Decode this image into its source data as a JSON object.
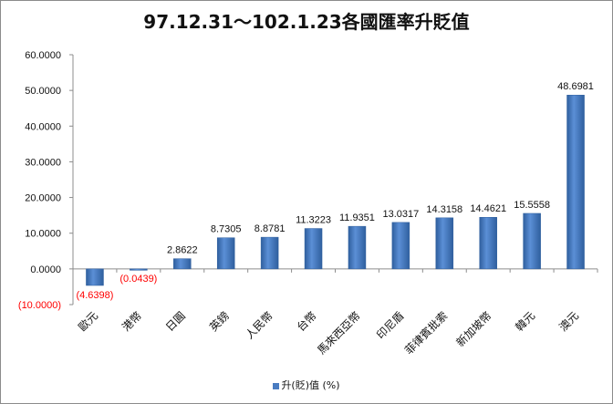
{
  "chart_data": {
    "type": "bar",
    "title": "97.12.31～102.1.23各國匯率升貶值",
    "categories": [
      "歐元",
      "港幣",
      "日圓",
      "英鎊",
      "人民幣",
      "台幣",
      "馬來西亞幣",
      "印尼盾",
      "菲律賓批索",
      "新加坡幣",
      "韓元",
      "澳元"
    ],
    "series": [
      {
        "name": "升(貶)值 (%)",
        "values": [
          -4.6398,
          -0.0439,
          2.8622,
          8.7305,
          8.8781,
          11.3223,
          11.9351,
          13.0317,
          14.3158,
          14.4621,
          15.5558,
          48.6981
        ]
      }
    ],
    "data_labels": [
      "(4.6398)",
      "(0.0439)",
      "2.8622",
      "8.7305",
      "8.8781",
      "11.3223",
      "11.9351",
      "13.0317",
      "14.3158",
      "14.4621",
      "15.5558",
      "48.6981"
    ],
    "ylim": [
      -10,
      60
    ],
    "yticks": [
      -10,
      0,
      10,
      20,
      30,
      40,
      50,
      60
    ],
    "ytick_labels": [
      "(10.0000)",
      "0.0000",
      "10.0000",
      "20.0000",
      "30.0000",
      "40.0000",
      "50.0000",
      "60.0000"
    ],
    "grid": false,
    "legend_position": "bottom",
    "colors": {
      "bar": "#4a7cc1",
      "bar_edge": "#2f5f9e",
      "negative_label": "#ff0000",
      "axis": "#8c8c8c"
    }
  }
}
